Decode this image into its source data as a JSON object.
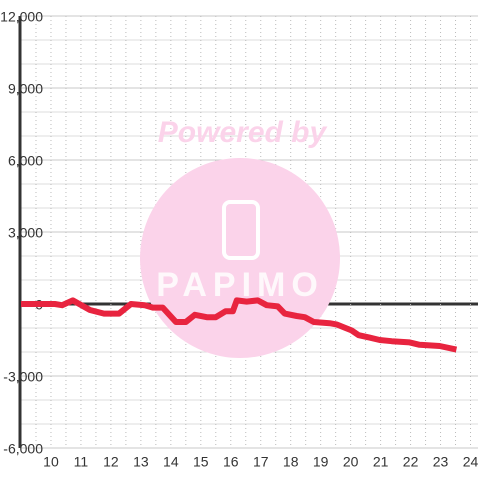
{
  "chart_data": {
    "type": "line",
    "watermark": "Powered by",
    "watermark_logo": "PAPIMO",
    "x": [
      9.0,
      10.13,
      10.37,
      10.73,
      11.3,
      11.77,
      12.27,
      12.67,
      13.13,
      13.4,
      13.73,
      14.17,
      14.5,
      14.8,
      15.2,
      15.5,
      15.83,
      16.07,
      16.2,
      16.53,
      16.9,
      17.2,
      17.57,
      17.8,
      18.2,
      18.47,
      18.77,
      19.3,
      19.53,
      19.83,
      20.03,
      20.27,
      20.63,
      20.97,
      21.37,
      21.97,
      22.3,
      22.97,
      23.53
    ],
    "series": [
      {
        "color": "#e8243f",
        "values": [
          0,
          0,
          -50,
          150,
          -250,
          -400,
          -400,
          0,
          -50,
          -150,
          -150,
          -750,
          -750,
          -450,
          -550,
          -550,
          -300,
          -300,
          150,
          100,
          150,
          -50,
          -100,
          -400,
          -500,
          -550,
          -750,
          -800,
          -850,
          -1000,
          -1100,
          -1300,
          -1400,
          -1500,
          -1550,
          -1600,
          -1700,
          -1750,
          -1900
        ]
      }
    ],
    "xlim": [
      9,
      24.25
    ],
    "xticks": [
      10,
      11,
      12,
      13,
      14,
      15,
      16,
      17,
      18,
      19,
      20,
      21,
      22,
      23,
      24
    ],
    "x_minor_ticks": [
      9.5,
      10.5,
      11.5,
      12.5,
      13.5,
      14.5,
      15.5,
      16.5,
      17.5,
      18.5,
      19.5,
      20.5,
      21.5,
      22.5,
      23.5
    ],
    "ylim": [
      -6000,
      12000
    ],
    "yticks": [
      {
        "value": -6000,
        "label": "-6,000"
      },
      {
        "value": -3000,
        "label": "-3,000"
      },
      0,
      {
        "value": 3000,
        "label": "3,000"
      },
      {
        "value": 6000,
        "label": "6,000"
      },
      {
        "value": 9000,
        "label": "9,000"
      },
      {
        "value": 12000,
        "label": "12,000"
      }
    ],
    "y_minor_ticks": [
      -5000,
      -4000,
      -2000,
      -1000,
      1000,
      2000,
      4000,
      5000,
      7000,
      8000,
      10000,
      11000
    ],
    "grid": true
  }
}
